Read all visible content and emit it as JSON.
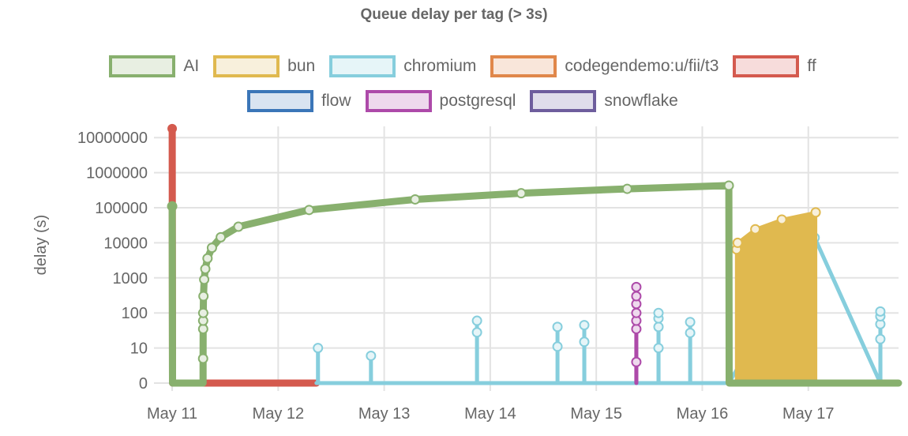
{
  "chart_data": {
    "type": "line",
    "title": "Queue delay per tag (> 3s)",
    "ylabel": "delay (s)",
    "xlabel": "",
    "yscale": "log",
    "ylim": [
      0,
      10000000
    ],
    "xlim": [
      "05-10T21:40",
      "05-17T20:25"
    ],
    "grid": true,
    "legend": "top",
    "yticks": [
      "10000000",
      "1000000",
      "100000",
      "10000",
      "1000",
      "100",
      "10",
      "0"
    ],
    "ytick_values": [
      10000000,
      1000000,
      100000,
      10000,
      1000,
      100,
      10,
      0
    ],
    "xticks": [
      "May 11",
      "May 12",
      "May 13",
      "May 14",
      "May 15",
      "May 16",
      "May 17"
    ],
    "xtick_values": [
      "05-11T00:00",
      "05-12T00:00",
      "05-13T00:00",
      "05-14T00:00",
      "05-15T00:00",
      "05-16T00:00",
      "05-17T00:00"
    ],
    "series": [
      {
        "name": "AI",
        "color": "#88b06e",
        "fill": "#e8efe2",
        "width": 9,
        "markers": true,
        "points": [
          [
            "05-11T00:00",
            110000
          ],
          [
            "05-11T00:05",
            0
          ],
          [
            "05-11T07:00",
            0
          ],
          [
            "05-11T07:00",
            5
          ],
          [
            "05-11T07:01",
            35
          ],
          [
            "05-11T07:01",
            60
          ],
          [
            "05-11T07:02",
            100
          ],
          [
            "05-11T07:05",
            300
          ],
          [
            "05-11T07:15",
            900
          ],
          [
            "05-11T07:30",
            1800
          ],
          [
            "05-11T08:00",
            3600
          ],
          [
            "05-11T09:00",
            7200
          ],
          [
            "05-11T11:00",
            14400
          ],
          [
            "05-11T15:00",
            28800
          ],
          [
            "05-12T07:00",
            86400
          ],
          [
            "05-13T07:00",
            172800
          ],
          [
            "05-14T07:00",
            259200
          ],
          [
            "05-15T07:00",
            345600
          ],
          [
            "05-16T06:00",
            428400
          ],
          [
            "05-16T06:05",
            0
          ],
          [
            "05-17T20:25",
            0
          ]
        ]
      },
      {
        "name": "bun",
        "color": "#e0b94f",
        "fill": "#f8f0dc",
        "width": 4,
        "markers": true,
        "area": true,
        "points": [
          [
            "05-16T07:45",
            0
          ],
          [
            "05-16T07:45",
            6500
          ],
          [
            "05-16T07:50",
            0
          ],
          [
            "05-16T08:00",
            0
          ],
          [
            "05-16T08:00",
            10000
          ],
          [
            "05-16T12:00",
            24400
          ],
          [
            "05-16T18:00",
            46000
          ],
          [
            "05-17T01:40",
            73800
          ],
          [
            "05-17T01:40",
            0
          ]
        ]
      },
      {
        "name": "chromium",
        "color": "#86cedd",
        "fill": "#e6f5f8",
        "width": 5,
        "markers": true,
        "points": [
          [
            "05-12T08:40",
            0
          ],
          [
            "05-12T09:00",
            0
          ],
          [
            "05-12T09:00",
            10
          ],
          [
            "05-12T09:01",
            0
          ],
          [
            "05-12T21:00",
            0
          ],
          [
            "05-12T21:00",
            6
          ],
          [
            "05-12T21:01",
            0
          ],
          [
            "05-13T21:00",
            0
          ],
          [
            "05-13T21:00",
            28
          ],
          [
            "05-13T21:00",
            60
          ],
          [
            "05-13T21:01",
            0
          ],
          [
            "05-14T15:13",
            0
          ],
          [
            "05-14T15:13",
            11
          ],
          [
            "05-14T15:13",
            40
          ],
          [
            "05-14T15:14",
            0
          ],
          [
            "05-14T21:17",
            0
          ],
          [
            "05-14T21:17",
            15
          ],
          [
            "05-14T21:17",
            45
          ],
          [
            "05-14T21:18",
            0
          ],
          [
            "05-15T14:05",
            0
          ],
          [
            "05-15T14:05",
            10
          ],
          [
            "05-15T14:05",
            40
          ],
          [
            "05-15T14:05",
            70
          ],
          [
            "05-15T14:05",
            100
          ],
          [
            "05-15T14:06",
            0
          ],
          [
            "05-15T21:15",
            0
          ],
          [
            "05-15T21:15",
            27
          ],
          [
            "05-15T21:15",
            55
          ],
          [
            "05-15T21:16",
            0
          ],
          [
            "05-16T06:00",
            0
          ],
          [
            "05-17T01:26",
            14000
          ],
          [
            "05-17T16:18",
            0
          ],
          [
            "05-17T16:18",
            18
          ],
          [
            "05-17T16:18",
            48
          ],
          [
            "05-17T16:18",
            80
          ],
          [
            "05-17T16:18",
            110
          ],
          [
            "05-17T16:19",
            0
          ]
        ]
      },
      {
        "name": "codegendemo:u/fii/t3",
        "color": "#e0874a",
        "fill": "#f9e6da",
        "width": 4,
        "markers": false,
        "points": []
      },
      {
        "name": "ff",
        "color": "#d45a4e",
        "fill": "#f7dcdb",
        "width": 9,
        "markers": false,
        "points": [
          [
            "05-11T00:00",
            18000000
          ],
          [
            "05-11T00:05",
            0
          ],
          [
            "05-12T08:40",
            0
          ]
        ]
      },
      {
        "name": "flow",
        "color": "#3b76b8",
        "fill": "#d9e4f1",
        "width": 4,
        "markers": false,
        "points": []
      },
      {
        "name": "postgresql",
        "color": "#ad4aa9",
        "fill": "#eed9ed",
        "width": 5,
        "markers": true,
        "points": [
          [
            "05-15T09:04",
            0
          ],
          [
            "05-15T09:04",
            4
          ],
          [
            "05-15T09:04",
            35
          ],
          [
            "05-15T09:04",
            60
          ],
          [
            "05-15T09:04",
            100
          ],
          [
            "05-15T09:04",
            180
          ],
          [
            "05-15T09:04",
            300
          ],
          [
            "05-15T09:04",
            550
          ],
          [
            "05-15T09:05",
            0
          ]
        ]
      },
      {
        "name": "snowflake",
        "color": "#6e5d9d",
        "fill": "#e0ddeb",
        "width": 4,
        "markers": false,
        "points": []
      }
    ]
  }
}
